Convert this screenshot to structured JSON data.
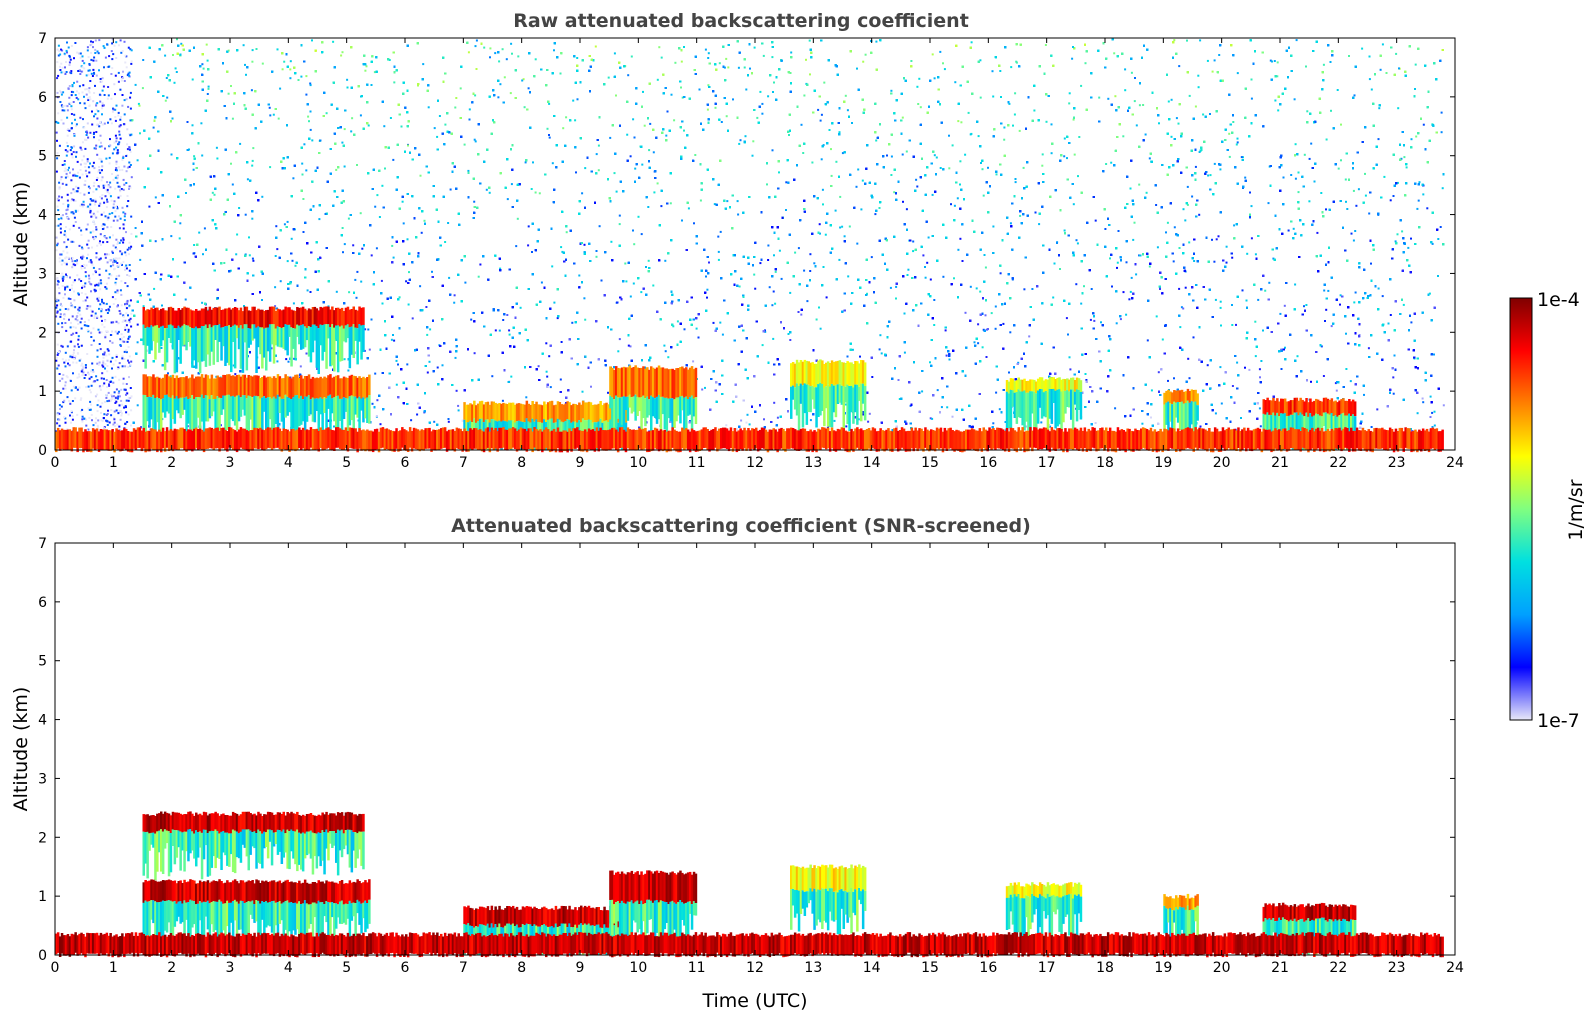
{
  "chart_data": [
    {
      "type": "heatmap",
      "title": "Raw attenuated backscattering coefficient",
      "xlabel": "",
      "ylabel": "Altitude (km)",
      "xlim": [
        0,
        24
      ],
      "ylim": [
        0,
        7
      ],
      "x_ticks": [
        "0",
        "1",
        "2",
        "3",
        "4",
        "5",
        "6",
        "7",
        "8",
        "9",
        "10",
        "11",
        "12",
        "13",
        "14",
        "15",
        "16",
        "17",
        "18",
        "19",
        "20",
        "21",
        "22",
        "23",
        "24"
      ],
      "y_ticks": [
        "0",
        "1",
        "2",
        "3",
        "4",
        "5",
        "6",
        "7"
      ],
      "features": [
        {
          "kind": "noise",
          "t0": 1.3,
          "t1": 23.8,
          "z0": 0.3,
          "z1": 7.0,
          "level": 0.45
        },
        {
          "kind": "noise",
          "t0": 0.0,
          "t1": 1.3,
          "z0": 0.15,
          "z1": 7.0,
          "level": 0.12
        },
        {
          "kind": "layer",
          "t0": 1.5,
          "t1": 5.3,
          "z0": 2.1,
          "z1": 2.4,
          "level": 0.95
        },
        {
          "kind": "layer",
          "t0": 1.5,
          "t1": 5.4,
          "z0": 0.9,
          "z1": 1.25,
          "level": 0.85
        },
        {
          "kind": "layer",
          "t0": 7.0,
          "t1": 9.8,
          "z0": 0.5,
          "z1": 0.8,
          "level": 0.8
        },
        {
          "kind": "layer",
          "t0": 9.5,
          "t1": 11.0,
          "z0": 0.9,
          "z1": 1.4,
          "level": 0.85
        },
        {
          "kind": "layer",
          "t0": 12.6,
          "t1": 13.9,
          "z0": 1.1,
          "z1": 1.5,
          "level": 0.7
        },
        {
          "kind": "layer",
          "t0": 16.3,
          "t1": 17.6,
          "z0": 1.0,
          "z1": 1.2,
          "level": 0.7
        },
        {
          "kind": "layer",
          "t0": 19.0,
          "t1": 19.6,
          "z0": 0.8,
          "z1": 1.0,
          "level": 0.8
        },
        {
          "kind": "layer",
          "t0": 20.7,
          "t1": 22.3,
          "z0": 0.6,
          "z1": 0.85,
          "level": 0.9
        },
        {
          "kind": "layer",
          "t0": 0.0,
          "t1": 23.8,
          "z0": 0.0,
          "z1": 0.35,
          "level": 0.9
        }
      ]
    },
    {
      "type": "heatmap",
      "title": "Attenuated backscattering coefficient (SNR-screened)",
      "xlabel": "Time (UTC)",
      "ylabel": "Altitude (km)",
      "xlim": [
        0,
        24
      ],
      "ylim": [
        0,
        7
      ],
      "x_ticks": [
        "0",
        "1",
        "2",
        "3",
        "4",
        "5",
        "6",
        "7",
        "8",
        "9",
        "10",
        "11",
        "12",
        "13",
        "14",
        "15",
        "16",
        "17",
        "18",
        "19",
        "20",
        "21",
        "22",
        "23",
        "24"
      ],
      "y_ticks": [
        "0",
        "1",
        "2",
        "3",
        "4",
        "5",
        "6",
        "7"
      ],
      "features": [
        {
          "kind": "layer",
          "t0": 1.5,
          "t1": 5.3,
          "z0": 2.1,
          "z1": 2.4,
          "level": 1.0
        },
        {
          "kind": "layer",
          "t0": 1.5,
          "t1": 5.4,
          "z0": 0.9,
          "z1": 1.25,
          "level": 1.0
        },
        {
          "kind": "layer",
          "t0": 7.0,
          "t1": 9.8,
          "z0": 0.5,
          "z1": 0.8,
          "level": 1.0
        },
        {
          "kind": "layer",
          "t0": 9.5,
          "t1": 11.0,
          "z0": 0.9,
          "z1": 1.4,
          "level": 1.0
        },
        {
          "kind": "layer",
          "t0": 12.6,
          "t1": 13.9,
          "z0": 1.1,
          "z1": 1.5,
          "level": 0.7
        },
        {
          "kind": "layer",
          "t0": 16.3,
          "t1": 17.6,
          "z0": 1.0,
          "z1": 1.2,
          "level": 0.7
        },
        {
          "kind": "layer",
          "t0": 19.0,
          "t1": 19.6,
          "z0": 0.8,
          "z1": 1.0,
          "level": 0.8
        },
        {
          "kind": "layer",
          "t0": 20.7,
          "t1": 22.3,
          "z0": 0.6,
          "z1": 0.85,
          "level": 1.0
        },
        {
          "kind": "layer",
          "t0": 0.0,
          "t1": 23.8,
          "z0": 0.0,
          "z1": 0.35,
          "level": 1.0
        }
      ]
    }
  ],
  "colorbar": {
    "label": "1/m/sr",
    "max_label": "1e-4",
    "min_label": "1e-7",
    "scale": "log",
    "range": [
      1e-07,
      0.0001
    ],
    "colormap": "jet",
    "colors": [
      "#e8e8f8",
      "#0000ff",
      "#00a0ff",
      "#00e0e0",
      "#80ff80",
      "#ffff00",
      "#ff8000",
      "#ff0000",
      "#800000"
    ]
  }
}
